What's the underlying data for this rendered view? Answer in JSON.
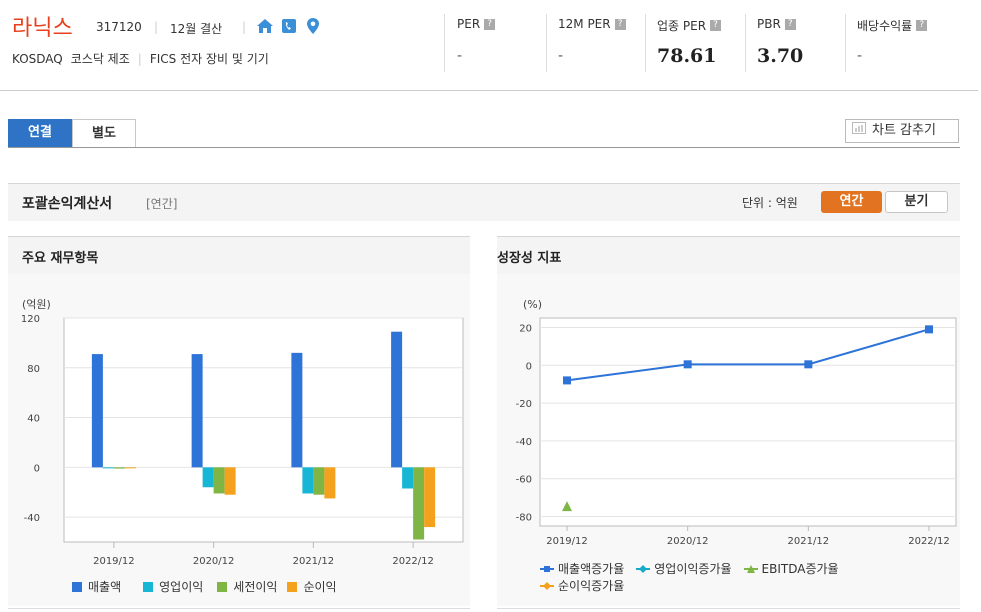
{
  "header": {
    "company_name": "라닉스",
    "stock_code": "317120",
    "settlement": "12월 결산",
    "market": "KOSDAQ",
    "market_category": "코스닥 제조",
    "fics": "FICS 전자 장비 및 기기",
    "icons": [
      "home-icon",
      "phone-icon",
      "map-pin-icon"
    ]
  },
  "metrics": [
    {
      "label": "PER",
      "value": "-"
    },
    {
      "label": "12M PER",
      "value": "-"
    },
    {
      "label": "업종 PER",
      "value": "78.61"
    },
    {
      "label": "PBR",
      "value": "3.70"
    },
    {
      "label": "배당수익률",
      "value": "-"
    }
  ],
  "tabs": {
    "consolidated": "연결",
    "separate": "별도"
  },
  "hide_chart_label": "차트 감추기",
  "section": {
    "title": "포괄손익계산서",
    "subtitle": "[연간]",
    "unit": "단위 : 억원",
    "period_annual": "연간",
    "period_quarter": "분기"
  },
  "panels": {
    "left_title": "주요 재무항목",
    "right_title": "성장성 지표"
  },
  "colors": {
    "accent_red": "#e8401c",
    "tab_blue": "#2e73c6",
    "toggle_orange": "#e27421"
  },
  "chart_data": [
    {
      "type": "bar",
      "ylabel": "(억원)",
      "categories": [
        "2019/12",
        "2020/12",
        "2021/12",
        "2022/12"
      ],
      "ylim": [
        -60,
        120
      ],
      "yticks": [
        120,
        80,
        40,
        0,
        -40
      ],
      "grid": true,
      "legend_position": "bottom",
      "series": [
        {
          "name": "매출액",
          "color": "#2d73d8",
          "values": [
            91,
            91,
            92,
            109
          ]
        },
        {
          "name": "영업이익",
          "color": "#17b6d4",
          "values": [
            0,
            -16,
            -21,
            -17
          ]
        },
        {
          "name": "세전이익",
          "color": "#7fb545",
          "values": [
            -1,
            -21,
            -22,
            -58
          ]
        },
        {
          "name": "순이익",
          "color": "#f4a21e",
          "values": [
            0,
            -22,
            -25,
            -48
          ]
        }
      ]
    },
    {
      "type": "line",
      "ylabel": "(%)",
      "categories": [
        "2019/12",
        "2020/12",
        "2021/12",
        "2022/12"
      ],
      "ylim": [
        -85,
        25
      ],
      "yticks": [
        20,
        0,
        -20,
        -40,
        -60,
        -80
      ],
      "grid": true,
      "legend_position": "bottom",
      "series": [
        {
          "name": "매출액증가율",
          "color": "#2d73d8",
          "marker": "square",
          "values": [
            -8,
            0.5,
            0.5,
            19
          ]
        },
        {
          "name": "영업이익증가율",
          "color": "#17a9c9",
          "marker": "diamond",
          "values": [
            null,
            null,
            null,
            null
          ]
        },
        {
          "name": "EBITDA증가율",
          "color": "#7fb545",
          "marker": "triangle",
          "values": [
            -75,
            null,
            null,
            null
          ]
        },
        {
          "name": "순이익증가율",
          "color": "#f4a21e",
          "marker": "diamond",
          "values": [
            null,
            null,
            null,
            null
          ]
        }
      ]
    }
  ]
}
